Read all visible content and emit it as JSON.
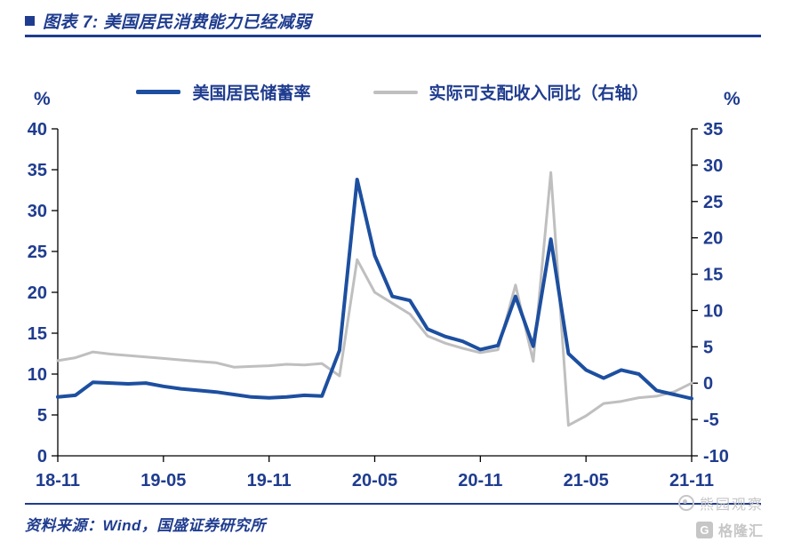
{
  "page": {
    "title": "图表 7: 美国居民消费能力已经减弱",
    "source": "资料来源：Wind，国盛证券研究所",
    "watermark_account": "熊园观察",
    "watermark_logo_glyph": "G",
    "watermark_logo_text": "格隆汇"
  },
  "colors": {
    "navy": "#1F3C8F",
    "blue": "#1D4FA0",
    "gray_line": "#BFBFBF",
    "wm_gray": "#C6C6C6",
    "axis_black": "#000000"
  },
  "chart_data": {
    "type": "line",
    "title": "美国居民消费能力已经减弱",
    "grid": false,
    "legend_position": "top",
    "x": [
      "18-11",
      "18-12",
      "19-01",
      "19-02",
      "19-03",
      "19-04",
      "19-05",
      "19-06",
      "19-07",
      "19-08",
      "19-09",
      "19-10",
      "19-11",
      "19-12",
      "20-01",
      "20-02",
      "20-03",
      "20-04",
      "20-05",
      "20-06",
      "20-07",
      "20-08",
      "20-09",
      "20-10",
      "20-11",
      "20-12",
      "21-01",
      "21-02",
      "21-03",
      "21-04",
      "21-05",
      "21-06",
      "21-07",
      "21-08",
      "21-09",
      "21-10",
      "21-11"
    ],
    "x_tick_labels": [
      "18-11",
      "19-05",
      "19-11",
      "20-05",
      "20-11",
      "21-05",
      "21-11"
    ],
    "left_axis": {
      "label": "%",
      "min": 0,
      "max": 40,
      "step": 5
    },
    "right_axis": {
      "label": "%",
      "min": -10,
      "max": 35,
      "step": 5
    },
    "series": [
      {
        "name": "美国居民储蓄率",
        "axis": "left",
        "color": "#1D4FA0",
        "width": 4,
        "values": [
          7.2,
          7.4,
          9.0,
          8.9,
          8.8,
          8.9,
          8.5,
          8.2,
          8.0,
          7.8,
          7.5,
          7.2,
          7.1,
          7.2,
          7.4,
          7.3,
          12.9,
          33.8,
          24.5,
          19.5,
          19.0,
          15.5,
          14.6,
          14.0,
          13.0,
          13.5,
          19.5,
          13.4,
          26.5,
          12.5,
          10.5,
          9.5,
          10.5,
          10.0,
          8.0,
          7.5,
          7.0
        ]
      },
      {
        "name": "实际可支配收入同比（右轴）",
        "axis": "right",
        "color": "#BFBFBF",
        "width": 3,
        "values": [
          3.1,
          3.5,
          4.3,
          4.0,
          3.8,
          3.6,
          3.4,
          3.2,
          3.0,
          2.8,
          2.2,
          2.3,
          2.4,
          2.6,
          2.5,
          2.7,
          1.0,
          17.0,
          12.5,
          11.0,
          9.5,
          6.5,
          5.5,
          4.8,
          4.2,
          4.6,
          13.5,
          3.0,
          29.0,
          -5.8,
          -4.5,
          -2.8,
          -2.5,
          -2.0,
          -1.8,
          -1.2,
          0.0
        ]
      }
    ]
  }
}
